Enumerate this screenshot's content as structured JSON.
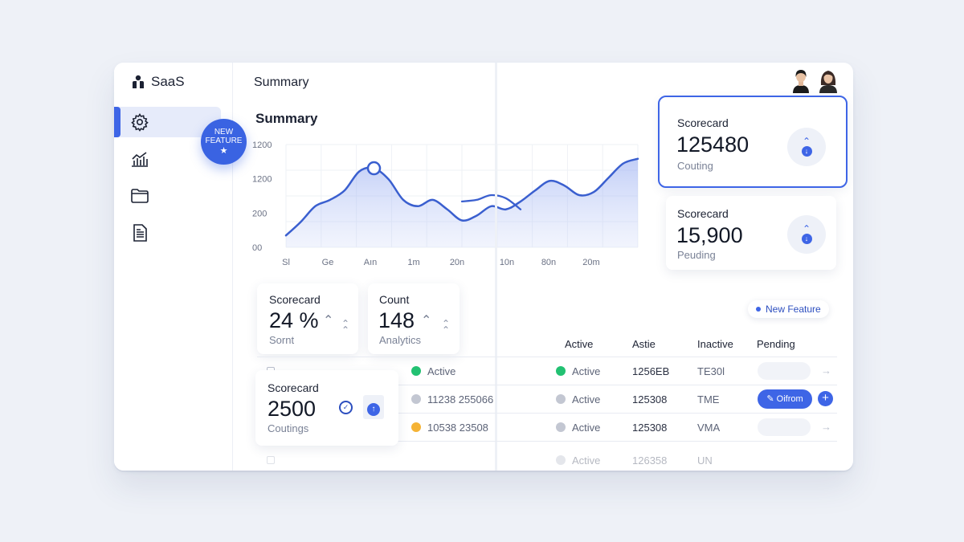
{
  "brand": {
    "name": "SaaS"
  },
  "header": {
    "title": "Summary"
  },
  "sidebar": {
    "items": [
      {
        "icon": "gear-icon",
        "active": true
      },
      {
        "icon": "analytics-icon",
        "active": false
      },
      {
        "icon": "folder-icon",
        "active": false
      },
      {
        "icon": "document-icon",
        "active": false
      }
    ],
    "badge": {
      "line1": "NEW",
      "line2": "FEATURE",
      "star": "★"
    }
  },
  "chart_data": {
    "type": "area",
    "title": "Summary",
    "y_tick_labels": [
      "1200",
      "1200",
      "200",
      "00"
    ],
    "x_tick_labels": [
      "Sl",
      "Ge",
      "Aın",
      "1m",
      "20n",
      "10n",
      "80n",
      "20m"
    ],
    "grid": true,
    "series": [
      {
        "x": [
          0,
          0.5,
          1,
          1.5,
          2,
          2.5,
          3,
          3.5,
          4,
          4.5,
          5,
          5.5,
          6,
          6.5,
          7,
          7.5,
          8,
          8.5,
          9,
          9.5,
          10,
          10.5,
          11,
          11.5,
          12
        ],
        "y": [
          15,
          32,
          52,
          60,
          72,
          96,
          100,
          86,
          60,
          52,
          60,
          48,
          34,
          40,
          52,
          48,
          58,
          72,
          84,
          78,
          66,
          70,
          88,
          106,
          112
        ]
      },
      {
        "x": [
          6,
          6.5,
          7,
          7.5,
          8
        ],
        "y": [
          58,
          60,
          66,
          62,
          48
        ]
      }
    ],
    "marker_index": 6
  },
  "scorecards_right": [
    {
      "label": "Scorecard",
      "value": "125480",
      "sub": "Couting",
      "selected": true
    },
    {
      "label": "Scorecard",
      "value": "15,900",
      "sub": "Peuding",
      "selected": false
    }
  ],
  "scorecards_mid": [
    {
      "label": "Scorecard",
      "value": "24 %",
      "sub": "Sornt"
    },
    {
      "label": "Count",
      "value": "148",
      "sub": "Analytics"
    }
  ],
  "scorecard_float": {
    "label": "Scorecard",
    "value": "2500",
    "sub": "Coutings"
  },
  "new_feature_pill": "New Feature",
  "table": {
    "headers": [
      "Active",
      "Astie",
      "Inactive",
      "Pending"
    ],
    "left_rows": [
      {
        "status": "Active",
        "color": "#22c172"
      },
      {
        "status": "11238 255066",
        "color": "#c3c7d2"
      },
      {
        "status": "10538 23508",
        "color": "#f5b335"
      }
    ],
    "rows": [
      {
        "status": "Active",
        "color": "#22c172",
        "id": "1256EB",
        "code": "TE30l",
        "action": ""
      },
      {
        "status": "Active",
        "color": "#c3c7d2",
        "id": "125308",
        "code": "TME",
        "action": "Oifrom"
      },
      {
        "status": "Active",
        "color": "#c3c7d2",
        "id": "125308",
        "code": "VMA",
        "action": ""
      }
    ],
    "partial_row": {
      "status": "Active",
      "id": "126358",
      "code": "UN"
    }
  }
}
